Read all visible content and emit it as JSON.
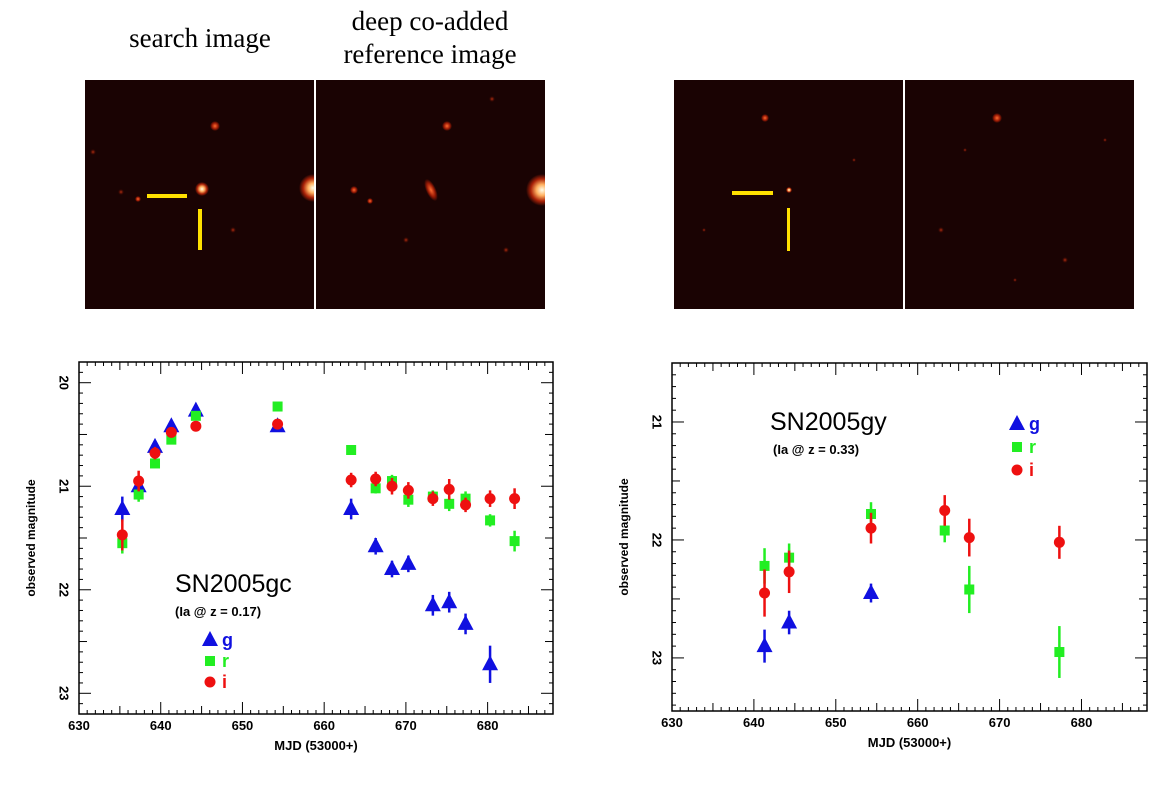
{
  "captions": {
    "search": "search image",
    "reference_line1": "deep co-added",
    "reference_line2": "reference image"
  },
  "colors": {
    "g": "#1010e0",
    "r": "#22ee22",
    "i": "#ee1010",
    "marker": "#ffe000",
    "stamp_bg": "#1a0303"
  },
  "chart_data": [
    {
      "type": "scatter",
      "title": "SN2005gc",
      "subtitle": "(Ia @ z = 0.17)",
      "xlabel": "MJD (53000+)",
      "ylabel": "observed magnitude",
      "xlim": [
        630,
        688
      ],
      "ylim": [
        23.2,
        19.8
      ],
      "y_inverted": true,
      "xticks": [
        630,
        640,
        650,
        660,
        670,
        680
      ],
      "yticks": [
        20,
        21,
        22,
        23
      ],
      "legend": "bottom-left",
      "series": [
        {
          "name": "g",
          "marker": "triangle",
          "x": [
            635.3,
            637.3,
            639.3,
            641.3,
            644.3,
            654.3,
            663.3,
            666.3,
            668.3,
            670.3,
            673.3,
            675.3,
            677.3,
            680.3
          ],
          "y": [
            21.22,
            21.0,
            20.62,
            20.42,
            20.27,
            20.42,
            21.22,
            21.58,
            21.8,
            21.75,
            22.15,
            22.12,
            22.33,
            22.72
          ],
          "err": [
            0.12,
            0.05,
            0.05,
            0.05,
            0.04,
            0.03,
            0.1,
            0.08,
            0.08,
            0.08,
            0.1,
            0.1,
            0.1,
            0.18
          ]
        },
        {
          "name": "r",
          "marker": "square",
          "x": [
            635.3,
            637.3,
            639.3,
            641.3,
            644.3,
            654.3,
            663.3,
            666.3,
            668.3,
            670.3,
            673.3,
            675.3,
            677.3,
            680.3,
            683.3
          ],
          "y": [
            21.55,
            21.08,
            20.78,
            20.55,
            20.32,
            20.23,
            20.65,
            21.02,
            20.95,
            21.13,
            21.1,
            21.17,
            21.12,
            21.33,
            21.53
          ],
          "err": [
            0.1,
            0.07,
            0.04,
            0.04,
            0.03,
            0.03,
            0.04,
            0.05,
            0.06,
            0.07,
            0.06,
            0.07,
            0.07,
            0.06,
            0.1
          ]
        },
        {
          "name": "i",
          "marker": "circle",
          "x": [
            635.3,
            637.3,
            639.3,
            641.3,
            644.3,
            654.3,
            663.3,
            666.3,
            668.3,
            670.3,
            673.3,
            675.3,
            677.3,
            680.3,
            683.3
          ],
          "y": [
            21.47,
            20.95,
            20.68,
            20.48,
            20.42,
            20.4,
            20.94,
            20.93,
            21.0,
            21.04,
            21.12,
            21.03,
            21.18,
            21.12,
            21.12
          ],
          "err": [
            0.15,
            0.1,
            0.06,
            0.05,
            0.04,
            0.04,
            0.07,
            0.07,
            0.08,
            0.08,
            0.07,
            0.1,
            0.07,
            0.08,
            0.1
          ]
        }
      ]
    },
    {
      "type": "scatter",
      "title": "SN2005gy",
      "subtitle": "(Ia @ z = 0.33)",
      "xlabel": "MJD (53000+)",
      "ylabel": "observed magnitude",
      "xlim": [
        630,
        688
      ],
      "ylim": [
        23.45,
        20.5
      ],
      "y_inverted": true,
      "xticks": [
        630,
        640,
        650,
        660,
        670,
        680
      ],
      "yticks": [
        21,
        22,
        23
      ],
      "legend": "top-right",
      "series": [
        {
          "name": "g",
          "marker": "triangle",
          "x": [
            641.3,
            644.3,
            654.3
          ],
          "y": [
            22.9,
            22.7,
            22.45
          ],
          "err": [
            0.14,
            0.1,
            0.08
          ]
        },
        {
          "name": "r",
          "marker": "square",
          "x": [
            641.3,
            644.3,
            654.3,
            663.3,
            666.3,
            677.3
          ],
          "y": [
            22.22,
            22.15,
            21.78,
            21.92,
            22.42,
            22.95
          ],
          "err": [
            0.15,
            0.12,
            0.1,
            0.1,
            0.2,
            0.22
          ]
        },
        {
          "name": "i",
          "marker": "circle",
          "x": [
            641.3,
            644.3,
            654.3,
            663.3,
            666.3,
            677.3
          ],
          "y": [
            22.45,
            22.27,
            21.9,
            21.75,
            21.98,
            22.02
          ],
          "err": [
            0.2,
            0.18,
            0.13,
            0.13,
            0.16,
            0.14
          ]
        }
      ]
    }
  ]
}
